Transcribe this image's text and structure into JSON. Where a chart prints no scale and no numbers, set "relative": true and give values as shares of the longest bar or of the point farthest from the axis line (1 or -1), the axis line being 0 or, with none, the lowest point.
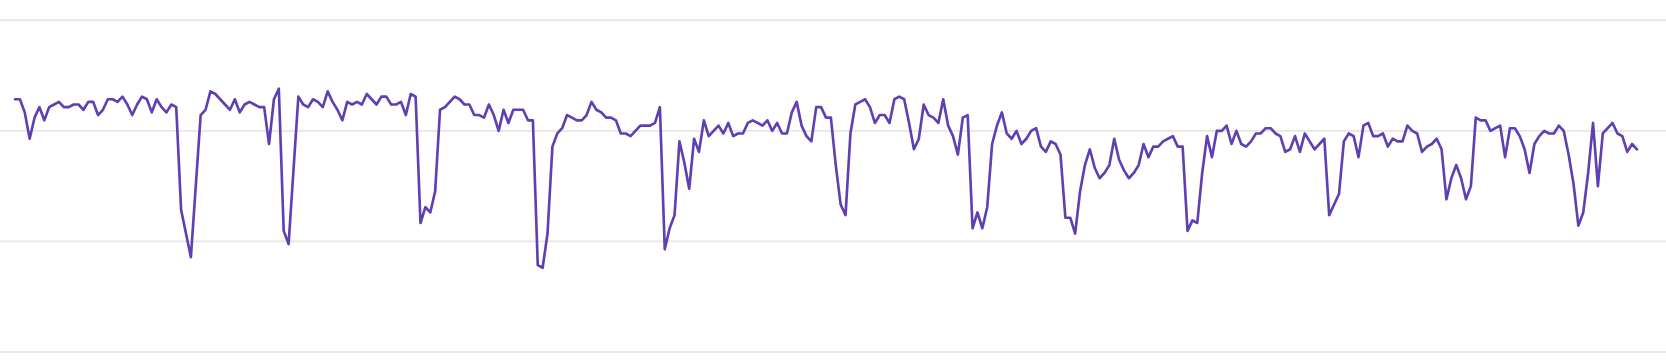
{
  "chart_data": {
    "type": "line",
    "relative": true,
    "marker": "none",
    "line_style": "solid",
    "ref_lines": [
      {
        "axis": "y",
        "value": 0,
        "color": "#e6e6e6"
      },
      {
        "axis": "y",
        "value": 0.42,
        "color": "#e6e6e6"
      },
      {
        "axis": "y",
        "value": 0.84,
        "color": "#e6e6e6"
      },
      {
        "axis": "y",
        "value": 1.26,
        "color": "#e6e6e6"
      }
    ],
    "categories": [
      null,
      null,
      null,
      null,
      null,
      null,
      null,
      null,
      null,
      null,
      null,
      null,
      null,
      null,
      null,
      null,
      null,
      null,
      null,
      null,
      null,
      null,
      null,
      null,
      null,
      null,
      null,
      null,
      null,
      null,
      null,
      null,
      null,
      null,
      null,
      null,
      null,
      null,
      null,
      null,
      null,
      null,
      null,
      null,
      null,
      null,
      null,
      null,
      null,
      null,
      null,
      null,
      null,
      null,
      null,
      null,
      null,
      null,
      null,
      null,
      null,
      null,
      null,
      null,
      null,
      null,
      null,
      null,
      null,
      null,
      null,
      null,
      null,
      null,
      null,
      null,
      null,
      null,
      null,
      null,
      null,
      null,
      null,
      null,
      null,
      null,
      null,
      null,
      null,
      null,
      null,
      null,
      null,
      null,
      null,
      null,
      null,
      null,
      null,
      null,
      null,
      null,
      null,
      null,
      null,
      null,
      null,
      null,
      null,
      null,
      null,
      null,
      null,
      null,
      null,
      null,
      null,
      null,
      null,
      null,
      null,
      null,
      null,
      null,
      null,
      null,
      null,
      null,
      null,
      null,
      null,
      null,
      null,
      null,
      null,
      null,
      null,
      null,
      null,
      null,
      null,
      null,
      null,
      null,
      null,
      null,
      null,
      null,
      null,
      null,
      null,
      null,
      null,
      null,
      null,
      null,
      null,
      null,
      null,
      null,
      null,
      null,
      null,
      null,
      null,
      null,
      null,
      null,
      null,
      null,
      null,
      null,
      null,
      null,
      null,
      null,
      null,
      null,
      null,
      null,
      null,
      null,
      null,
      null,
      null,
      null,
      null,
      null,
      null,
      null,
      null,
      null,
      null,
      null,
      null,
      null,
      null,
      null,
      null,
      null,
      null,
      null,
      null,
      null,
      null,
      null,
      null,
      null,
      null,
      null,
      null,
      null,
      null,
      null,
      null,
      null,
      null,
      null,
      null,
      null,
      null,
      null,
      null,
      null,
      null,
      null,
      null,
      null,
      null,
      null,
      null,
      null,
      null,
      null,
      null,
      null,
      null,
      null,
      null,
      null,
      null,
      null,
      null,
      null,
      null,
      null,
      null,
      null,
      null,
      null,
      null,
      null,
      null,
      null,
      null,
      null,
      null,
      null,
      null,
      null,
      null,
      null,
      null,
      null,
      null,
      null,
      null,
      null,
      null,
      null,
      null,
      null,
      null,
      null,
      null,
      null,
      null,
      null,
      null,
      null,
      null,
      null,
      null,
      null,
      null,
      null,
      null,
      null,
      null,
      null,
      null,
      null,
      null,
      null,
      null,
      null,
      null,
      null,
      null,
      null,
      null,
      null,
      null,
      null,
      null,
      null,
      null,
      null,
      null,
      null,
      null,
      null,
      null,
      null,
      null,
      null,
      null,
      null,
      null,
      null,
      null,
      null,
      null,
      null,
      null,
      null,
      null,
      null,
      null,
      null,
      null,
      null,
      null
    ],
    "series": [
      {
        "color": "#5f3fb1",
        "values": [
          0.96,
          0.96,
          0.91,
          0.81,
          0.89,
          0.93,
          0.88,
          0.93,
          0.94,
          0.95,
          0.93,
          0.93,
          0.94,
          0.94,
          0.92,
          0.95,
          0.95,
          0.9,
          0.92,
          0.96,
          0.96,
          0.95,
          0.97,
          0.94,
          0.9,
          0.94,
          0.97,
          0.96,
          0.91,
          0.96,
          0.93,
          0.91,
          0.94,
          0.93,
          0.54,
          0.45,
          0.36,
          0.63,
          0.9,
          0.92,
          0.99,
          0.98,
          0.96,
          0.94,
          0.92,
          0.96,
          0.91,
          0.94,
          0.95,
          0.94,
          0.93,
          0.93,
          0.79,
          0.96,
          1.0,
          0.46,
          0.41,
          0.69,
          0.97,
          0.94,
          0.93,
          0.96,
          0.95,
          0.93,
          0.99,
          0.95,
          0.92,
          0.88,
          0.95,
          0.94,
          0.95,
          0.94,
          0.98,
          0.96,
          0.94,
          0.97,
          0.97,
          0.94,
          0.94,
          0.95,
          0.9,
          0.98,
          0.97,
          0.49,
          0.55,
          0.53,
          0.61,
          0.92,
          0.93,
          0.95,
          0.97,
          0.96,
          0.94,
          0.94,
          0.9,
          0.9,
          0.89,
          0.94,
          0.9,
          0.84,
          0.92,
          0.87,
          0.92,
          0.92,
          0.92,
          0.88,
          0.88,
          0.33,
          0.32,
          0.45,
          0.78,
          0.83,
          0.85,
          0.9,
          0.89,
          0.88,
          0.88,
          0.9,
          0.95,
          0.92,
          0.91,
          0.89,
          0.89,
          0.88,
          0.83,
          0.83,
          0.82,
          0.84,
          0.86,
          0.86,
          0.86,
          0.87,
          0.93,
          0.39,
          0.47,
          0.52,
          0.8,
          0.72,
          0.62,
          0.81,
          0.76,
          0.88,
          0.82,
          0.84,
          0.86,
          0.83,
          0.87,
          0.82,
          0.83,
          0.83,
          0.87,
          0.88,
          0.87,
          0.86,
          0.88,
          0.84,
          0.87,
          0.83,
          0.83,
          0.91,
          0.95,
          0.86,
          0.82,
          0.8,
          0.93,
          0.93,
          0.89,
          0.89,
          0.71,
          0.56,
          0.52,
          0.83,
          0.94,
          0.95,
          0.96,
          0.93,
          0.87,
          0.9,
          0.9,
          0.87,
          0.96,
          0.97,
          0.96,
          0.87,
          0.77,
          0.81,
          0.94,
          0.9,
          0.89,
          0.87,
          0.96,
          0.86,
          0.82,
          0.75,
          0.89,
          0.9,
          0.47,
          0.53,
          0.47,
          0.55,
          0.79,
          0.86,
          0.91,
          0.83,
          0.81,
          0.84,
          0.79,
          0.81,
          0.84,
          0.85,
          0.78,
          0.76,
          0.8,
          0.79,
          0.75,
          0.51,
          0.51,
          0.45,
          0.61,
          0.71,
          0.77,
          0.7,
          0.66,
          0.68,
          0.71,
          0.81,
          0.73,
          0.69,
          0.66,
          0.68,
          0.71,
          0.79,
          0.74,
          0.78,
          0.78,
          0.8,
          0.81,
          0.82,
          0.78,
          0.78,
          0.46,
          0.5,
          0.49,
          0.68,
          0.82,
          0.74,
          0.84,
          0.84,
          0.86,
          0.79,
          0.84,
          0.79,
          0.78,
          0.8,
          0.83,
          0.83,
          0.85,
          0.85,
          0.83,
          0.82,
          0.76,
          0.77,
          0.82,
          0.76,
          0.83,
          0.8,
          0.77,
          0.79,
          0.81,
          0.52,
          0.56,
          0.6,
          0.8,
          0.83,
          0.82,
          0.74,
          0.86,
          0.87,
          0.82,
          0.82,
          0.83,
          0.78,
          0.81,
          0.8,
          0.8,
          0.86,
          0.84,
          0.83,
          0.76,
          0.78,
          0.79,
          0.81,
          0.77,
          0.58,
          0.66,
          0.71,
          0.66,
          0.58,
          0.63,
          0.89,
          0.88,
          0.88,
          0.84,
          0.85,
          0.86,
          0.74,
          0.85,
          0.85,
          0.82,
          0.77,
          0.68,
          0.79,
          0.82,
          0.84,
          0.83,
          0.83,
          0.86,
          0.84,
          0.75,
          0.64,
          0.48,
          0.53,
          0.68,
          0.87,
          0.63,
          0.83,
          0.85,
          0.87,
          0.83,
          0.82,
          0.76,
          0.79,
          0.77
        ]
      }
    ]
  }
}
